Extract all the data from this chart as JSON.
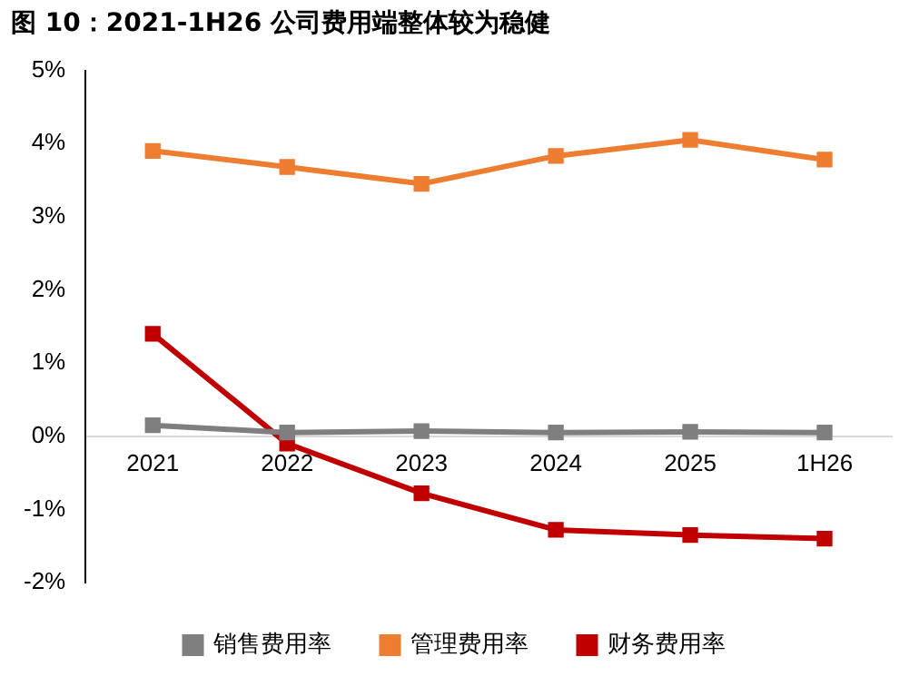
{
  "chart_data": {
    "type": "line",
    "title": "图 10：2021-1H26 公司费用端整体较为稳健",
    "categories": [
      "2021",
      "2022",
      "2023",
      "2024",
      "2025",
      "1H26"
    ],
    "series": [
      {
        "name": "销售费用率",
        "color": "#7f7f7f",
        "values": [
          0.15,
          0.05,
          0.07,
          0.05,
          0.06,
          0.05
        ]
      },
      {
        "name": "管理费用率",
        "color": "#ed7d31",
        "values": [
          3.9,
          3.68,
          3.45,
          3.83,
          4.05,
          3.78
        ]
      },
      {
        "name": "财务费用率",
        "color": "#c00000",
        "values": [
          1.4,
          -0.1,
          -0.78,
          -1.28,
          -1.35,
          -1.4
        ]
      }
    ],
    "ylim": [
      -2,
      5
    ],
    "yticks": [
      {
        "value": -2,
        "label": "-2%"
      },
      {
        "value": -1,
        "label": "-1%"
      },
      {
        "value": 0,
        "label": "0%"
      },
      {
        "value": 1,
        "label": "1%"
      },
      {
        "value": 2,
        "label": "2%"
      },
      {
        "value": 3,
        "label": "3%"
      },
      {
        "value": 4,
        "label": "4%"
      },
      {
        "value": 5,
        "label": "5%"
      }
    ],
    "grid": false,
    "legend": "bottom",
    "marker": "square",
    "line_style": "solid"
  }
}
